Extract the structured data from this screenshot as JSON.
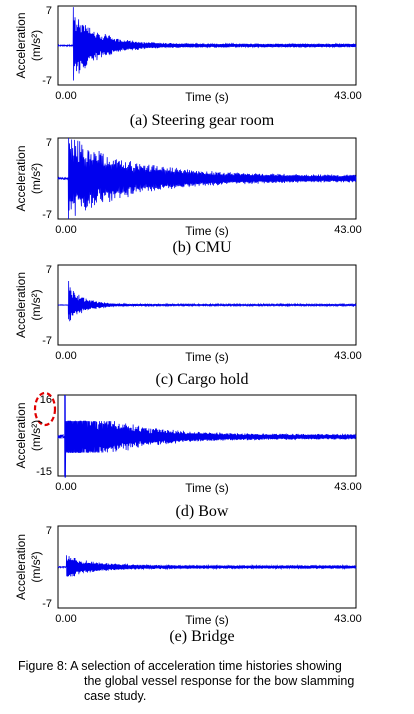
{
  "caption": {
    "line1": "Figure 8: A selection of acceleration time histories showing",
    "line2": "the global vessel response for the bow slamming",
    "line3": "case study."
  },
  "colors": {
    "signal": "#0000ee",
    "highlight": "#e00000"
  },
  "chart_data": [
    {
      "type": "line",
      "caption": "(a) Steering gear room",
      "xlabel": "Time (s)",
      "ylabel_main": "Acceleration",
      "ylabel_unit": "(m/s²)",
      "xlim": [
        0,
        43
      ],
      "ylim": [
        -7,
        7
      ],
      "xticks": [
        "0.00",
        "43.00"
      ],
      "yticks": [
        "7",
        "-7"
      ],
      "x_zero_label_shown": true,
      "impact_time": 2.2,
      "peak_positive": 6.8,
      "peak_negative": -6.2,
      "decay_time_constant": 3.5,
      "residual_amplitude": 0.35,
      "oscillation_frequency_hz": 2.6,
      "grid": false
    },
    {
      "type": "line",
      "caption": "(b) CMU",
      "xlabel": "Time (s)",
      "ylabel_main": "Acceleration",
      "ylabel_unit": "(m/s²)",
      "xlim": [
        0,
        43
      ],
      "ylim": [
        -7,
        7
      ],
      "xticks": [
        "0.00",
        "43.00"
      ],
      "yticks": [
        "7",
        "-7"
      ],
      "x_zero_label_shown": true,
      "impact_time": 1.5,
      "peak_positive": 7,
      "peak_negative": -7,
      "decay_time_constant": 9,
      "residual_amplitude": 0.6,
      "oscillation_frequency_hz": 2.2,
      "grid": false
    },
    {
      "type": "line",
      "caption": "(c) Cargo hold",
      "xlabel": "Time (s)",
      "ylabel_main": "Acceleration",
      "ylabel_unit": "(m/s²)",
      "xlim": [
        0,
        43
      ],
      "ylim": [
        -7,
        7
      ],
      "xticks": [
        "0.00",
        "43.00"
      ],
      "yticks": [
        "7",
        "-7"
      ],
      "x_zero_label_shown": true,
      "impact_time": 1.5,
      "peak_positive": 4.2,
      "peak_negative": -2.5,
      "decay_time_constant": 2.2,
      "residual_amplitude": 0.15,
      "oscillation_frequency_hz": 2.8,
      "grid": false
    },
    {
      "type": "line",
      "caption": "(d) Bow",
      "xlabel": "Time (s)",
      "ylabel_main": "Acceleration",
      "ylabel_unit": "(m/s²)",
      "xlim": [
        0,
        43
      ],
      "ylim": [
        -15,
        16
      ],
      "xticks": [
        "0.00",
        "43.00"
      ],
      "yticks": [
        "16",
        "-15"
      ],
      "x_zero_label_shown": true,
      "impact_time": 1.0,
      "peak_positive": 16,
      "peak_negative": -15,
      "decay_time_constant": 7,
      "residual_amplitude": 1.0,
      "oscillation_frequency_hz": 2.4,
      "highlighted_tick": "16",
      "grid": false
    },
    {
      "type": "line",
      "caption": "(e) Bridge",
      "xlabel": "Time (s)",
      "ylabel_main": "Acceleration",
      "ylabel_unit": "(m/s²)",
      "xlim": [
        0,
        43
      ],
      "ylim": [
        -7,
        7
      ],
      "xticks": [
        "",
        "43.00"
      ],
      "yticks": [
        "7",
        "-7"
      ],
      "x_zero_label_shown": true,
      "x_zero_label": "0.00",
      "impact_time": 1.2,
      "peak_positive": 2.0,
      "peak_negative": -1.5,
      "decay_time_constant": 4,
      "residual_amplitude": 0.3,
      "oscillation_frequency_hz": 2.6,
      "grid": false
    }
  ]
}
